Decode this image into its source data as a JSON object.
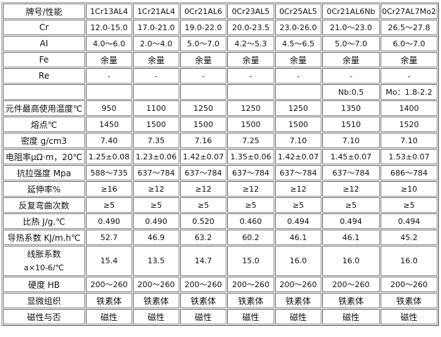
{
  "header": [
    "牌号/性能",
    "1Cr13AL4",
    "1Cr21AL4",
    "0Cr21AL6",
    "0Cr23AL5",
    "0Cr25AL5",
    "0Cr21AL6Nb",
    "0Cr27AL7Mo2"
  ],
  "rows": [
    {
      "label": "Cr",
      "values": [
        "12.0-15.0",
        "17.0-21.0",
        "19.0-22.0",
        "20.0-23.5",
        "23.0-26.0",
        "21.0～23.0",
        "26.5～27.8"
      ]
    },
    {
      "label": "AI",
      "values": [
        "4.0～6.0",
        "2.0～4.0",
        "5.0～7.0",
        "4.2～5.3",
        "4.5～6.5",
        "5.0～7.0",
        "6.0～7.0"
      ]
    },
    {
      "label": "Fe",
      "values": [
        "余量",
        "余量",
        "余量",
        "余量",
        "余量",
        "余量",
        "余量"
      ]
    },
    {
      "label": "Re",
      "values": [
        "-",
        "-",
        "-",
        "-",
        "-",
        "-",
        "-"
      ]
    },
    {
      "label": "",
      "values": [
        "",
        "",
        "",
        "",
        "",
        "Nb:0.5",
        "Mo：1.8-2.2"
      ]
    },
    {
      "label": "元件最高使用温度℃",
      "values": [
        "950",
        "1100",
        "1250",
        "1250",
        "1250",
        "1350",
        "1400"
      ]
    },
    {
      "label": "熔点℃",
      "values": [
        "1450",
        "1500",
        "1500",
        "1500",
        "1500",
        "1510",
        "1520"
      ]
    },
    {
      "label": "密度 g/cm3",
      "values": [
        "7.40",
        "7.35",
        "7.16",
        "7.25",
        "7.10",
        "7.10",
        "7.10"
      ]
    },
    {
      "label": "电阻率μΩ·m，20℃",
      "values": [
        "1.25±0.08",
        "1.23±0.06",
        "1.42±0.07",
        "1.35±0.06",
        "1.42±0.07",
        "1.45±0.07",
        "1.53±0.07"
      ]
    },
    {
      "label": "抗拉强度 Mpa",
      "values": [
        "588～735",
        "637～784",
        "637～784",
        "637～784",
        "637～784",
        "637～784",
        "686～784"
      ]
    },
    {
      "label": "延伸率%",
      "values": [
        "≥16",
        "≥12",
        "≥12",
        "≥12",
        "≥12",
        "≥12",
        "≥10"
      ]
    },
    {
      "label": "反复弯曲次数",
      "values": [
        "≥5",
        "≥5",
        "≥5",
        "≥5",
        "≥5",
        "≥5",
        "≥5"
      ]
    },
    {
      "label": "比热 J/g.℃",
      "values": [
        "0.490",
        "0.490",
        "0.520",
        "0.460",
        "0.494",
        "0.494",
        "0.494"
      ]
    },
    {
      "label": "导热系数 KJ/m.h℃",
      "values": [
        "52.7",
        "46.9",
        "63.2",
        "60.2",
        "46.1",
        "46.1",
        "45.2"
      ]
    },
    {
      "label": "线胀系数",
      "label2": "a×10-6/℃",
      "values": [
        "15.4",
        "13.5",
        "14.7",
        "15.0",
        "16.0",
        "16.0",
        "16.0"
      ]
    },
    {
      "label": "硬度 HB",
      "values": [
        "200～260",
        "200～260",
        "200～260",
        "200～260",
        "200～260",
        "200～260",
        "200～260"
      ]
    },
    {
      "label": "显微组织",
      "values": [
        "铁素体",
        "铁素体",
        "铁素体",
        "铁素体",
        "铁素体",
        "铁素体",
        "铁素体"
      ]
    },
    {
      "label": "磁性与否",
      "values": [
        "磁性",
        "磁性",
        "磁性",
        "磁性",
        "磁性",
        "磁性",
        "磁性"
      ]
    }
  ]
}
